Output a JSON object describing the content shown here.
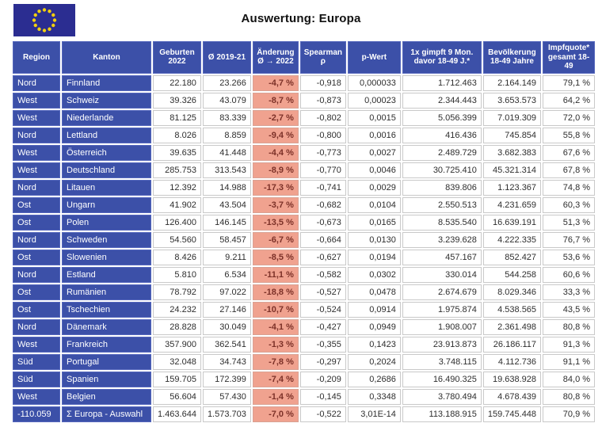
{
  "page": {
    "title": "Auswertung: Europa"
  },
  "flag": {
    "semantic": "eu-flag",
    "background": "#2b2d91",
    "star_color": "#f2cf0e",
    "star_count": 12
  },
  "colors": {
    "header_blue": "#3c50a8",
    "blue_border": "#5668bd",
    "salmon": "#f0a28f",
    "salmon_border": "#dca violet",
    "salmon_cell_border": "#d9a294",
    "salmon_text": "#7c3128",
    "grid_border": "#c9c9c9"
  },
  "table": {
    "columns": [
      {
        "id": "region",
        "label": "Region",
        "kind": "dimension"
      },
      {
        "id": "kanton",
        "label": "Kanton",
        "kind": "dimension"
      },
      {
        "id": "geburten_2022",
        "label": "Geburten\n2022",
        "kind": "measure"
      },
      {
        "id": "avg_2019_21",
        "label": "Ø 2019-21",
        "kind": "measure"
      },
      {
        "id": "aenderung_2022",
        "label": "Änderung\nØ → 2022",
        "kind": "change"
      },
      {
        "id": "spearman_rho",
        "label": "Spearman\nρ",
        "kind": "measure"
      },
      {
        "id": "p_wert",
        "label": "p-Wert",
        "kind": "measure"
      },
      {
        "id": "geimpft_9mon",
        "label": "1x gimpft 9 Mon.\ndavor 18-49 J.*",
        "kind": "measure"
      },
      {
        "id": "bevoelkerung_1849",
        "label": "Bevölkerung\n18-49 Jahre",
        "kind": "measure"
      },
      {
        "id": "impfquote_1849",
        "label": "Impfquote*\ngesamt 18-49",
        "kind": "measure"
      }
    ],
    "rows": [
      [
        "Nord",
        "Finnland",
        "22.180",
        "23.266",
        "-4,7 %",
        "-0,918",
        "0,000033",
        "1.712.463",
        "2.164.149",
        "79,1 %"
      ],
      [
        "West",
        "Schweiz",
        "39.326",
        "43.079",
        "-8,7 %",
        "-0,873",
        "0,00023",
        "2.344.443",
        "3.653.573",
        "64,2 %"
      ],
      [
        "West",
        "Niederlande",
        "81.125",
        "83.339",
        "-2,7 %",
        "-0,802",
        "0,0015",
        "5.056.399",
        "7.019.309",
        "72,0 %"
      ],
      [
        "Nord",
        "Lettland",
        "8.026",
        "8.859",
        "-9,4 %",
        "-0,800",
        "0,0016",
        "416.436",
        "745.854",
        "55,8 %"
      ],
      [
        "West",
        "Österreich",
        "39.635",
        "41.448",
        "-4,4 %",
        "-0,773",
        "0,0027",
        "2.489.729",
        "3.682.383",
        "67,6 %"
      ],
      [
        "West",
        "Deutschland",
        "285.753",
        "313.543",
        "-8,9 %",
        "-0,770",
        "0,0046",
        "30.725.410",
        "45.321.314",
        "67,8 %"
      ],
      [
        "Nord",
        "Litauen",
        "12.392",
        "14.988",
        "-17,3 %",
        "-0,741",
        "0,0029",
        "839.806",
        "1.123.367",
        "74,8 %"
      ],
      [
        "Ost",
        "Ungarn",
        "41.902",
        "43.504",
        "-3,7 %",
        "-0,682",
        "0,0104",
        "2.550.513",
        "4.231.659",
        "60,3 %"
      ],
      [
        "Ost",
        "Polen",
        "126.400",
        "146.145",
        "-13,5 %",
        "-0,673",
        "0,0165",
        "8.535.540",
        "16.639.191",
        "51,3 %"
      ],
      [
        "Nord",
        "Schweden",
        "54.560",
        "58.457",
        "-6,7 %",
        "-0,664",
        "0,0130",
        "3.239.628",
        "4.222.335",
        "76,7 %"
      ],
      [
        "Ost",
        "Slowenien",
        "8.426",
        "9.211",
        "-8,5 %",
        "-0,627",
        "0,0194",
        "457.167",
        "852.427",
        "53,6 %"
      ],
      [
        "Nord",
        "Estland",
        "5.810",
        "6.534",
        "-11,1 %",
        "-0,582",
        "0,0302",
        "330.014",
        "544.258",
        "60,6 %"
      ],
      [
        "Ost",
        "Rumänien",
        "78.792",
        "97.022",
        "-18,8 %",
        "-0,527",
        "0,0478",
        "2.674.679",
        "8.029.346",
        "33,3 %"
      ],
      [
        "Ost",
        "Tschechien",
        "24.232",
        "27.146",
        "-10,7 %",
        "-0,524",
        "0,0914",
        "1.975.874",
        "4.538.565",
        "43,5 %"
      ],
      [
        "Nord",
        "Dänemark",
        "28.828",
        "30.049",
        "-4,1 %",
        "-0,427",
        "0,0949",
        "1.908.007",
        "2.361.498",
        "80,8 %"
      ],
      [
        "West",
        "Frankreich",
        "357.900",
        "362.541",
        "-1,3 %",
        "-0,355",
        "0,1423",
        "23.913.873",
        "26.186.117",
        "91,3 %"
      ],
      [
        "Süd",
        "Portugal",
        "32.048",
        "34.743",
        "-7,8 %",
        "-0,297",
        "0,2024",
        "3.748.115",
        "4.112.736",
        "91,1 %"
      ],
      [
        "Süd",
        "Spanien",
        "159.705",
        "172.399",
        "-7,4 %",
        "-0,209",
        "0,2686",
        "16.490.325",
        "19.638.928",
        "84,0 %"
      ],
      [
        "West",
        "Belgien",
        "56.604",
        "57.430",
        "-1,4 %",
        "-0,145",
        "0,3348",
        "3.780.494",
        "4.678.439",
        "80,8 %"
      ]
    ],
    "total_row": [
      "-110.059",
      "Σ Europa - Auswahl",
      "1.463.644",
      "1.573.703",
      "-7,0 %",
      "-0,522",
      "3,01E-14",
      "113.188.915",
      "159.745.448",
      "70,9 %"
    ]
  }
}
